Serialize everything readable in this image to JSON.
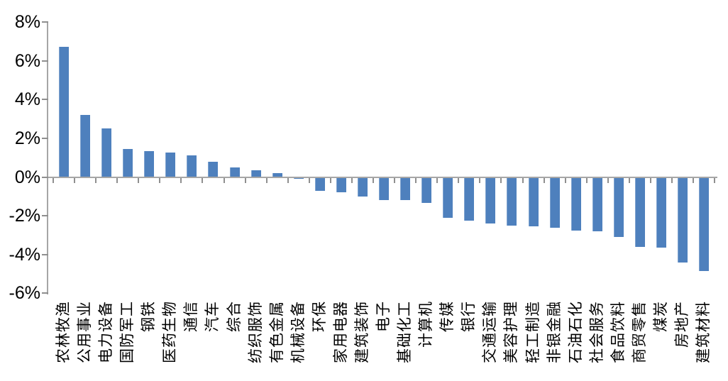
{
  "chart_data": {
    "type": "bar",
    "title": "",
    "xlabel": "",
    "ylabel": "",
    "unit": "percent",
    "grid": false,
    "legend": null,
    "ylim": [
      -6,
      8
    ],
    "y_tick_step": 2,
    "y_tick_labels": [
      "8%",
      "6%",
      "4%",
      "2%",
      "0%",
      "-2%",
      "-4%",
      "-6%"
    ],
    "y_tick_values": [
      8,
      6,
      4,
      2,
      0,
      -2,
      -4,
      -6
    ],
    "bar_color": "#4E80BD",
    "axis_color": "#A6A6A6",
    "tick_color": "#8F8F8F",
    "categories": [
      "农林牧渔",
      "公用事业",
      "电力设备",
      "国防军工",
      "钢铁",
      "医药生物",
      "通信",
      "汽车",
      "综合",
      "纺织服饰",
      "有色金属",
      "机械设备",
      "环保",
      "家用电器",
      "建筑装饰",
      "电子",
      "基础化工",
      "计算机",
      "传媒",
      "银行",
      "交通运输",
      "美容护理",
      "轻工制造",
      "非银金融",
      "石油石化",
      "社会服务",
      "食品饮料",
      "商贸零售",
      "煤炭",
      "房地产",
      "建筑材料"
    ],
    "values": [
      6.7,
      3.2,
      2.5,
      1.45,
      1.35,
      1.25,
      1.1,
      0.8,
      0.5,
      0.35,
      0.2,
      -0.1,
      -0.7,
      -0.8,
      -1.0,
      -1.2,
      -1.2,
      -1.35,
      -2.1,
      -2.25,
      -2.4,
      -2.5,
      -2.55,
      -2.6,
      -2.75,
      -2.8,
      -3.1,
      -3.6,
      -3.65,
      -4.4,
      -4.85
    ]
  }
}
